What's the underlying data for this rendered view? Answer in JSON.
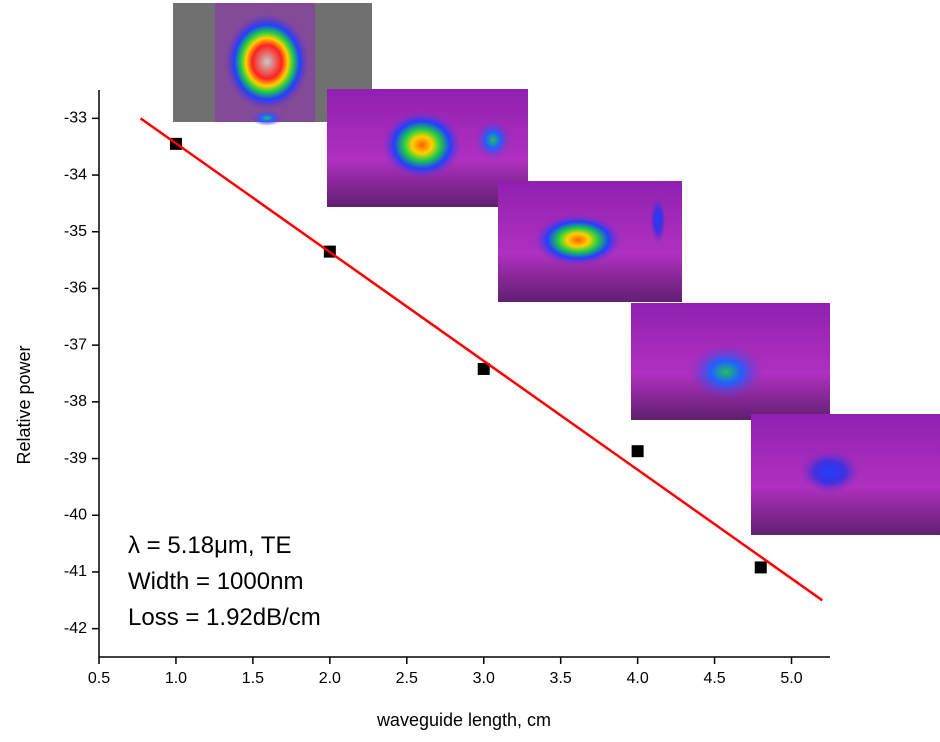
{
  "chart_data": {
    "type": "scatter",
    "xlabel": "waveguide length, cm",
    "ylabel": "Relative power",
    "xlim": [
      0.5,
      5.25
    ],
    "ylim": [
      -42.5,
      -32.5
    ],
    "xticks": [
      {
        "value": 0.5,
        "label": "0.5"
      },
      {
        "value": 1,
        "label": "1.0"
      },
      {
        "value": 1.5,
        "label": "1.5"
      },
      {
        "value": 2,
        "label": "2.0"
      },
      {
        "value": 2.5,
        "label": "2.5"
      },
      {
        "value": 3,
        "label": "3.0"
      },
      {
        "value": 3.5,
        "label": "3.5"
      },
      {
        "value": 4,
        "label": "4.0"
      },
      {
        "value": 4.5,
        "label": "4.5"
      },
      {
        "value": 5,
        "label": "5.0"
      }
    ],
    "yticks": [
      -33,
      -34,
      -35,
      -36,
      -37,
      -38,
      -39,
      -40,
      -41,
      -42
    ],
    "series": [
      {
        "type": "scatter",
        "color": "#000000",
        "x": [
          1.0,
          2.0,
          3.0,
          4.0,
          4.8
        ],
        "values": [
          -33.45,
          -35.35,
          -37.42,
          -38.87,
          -40.92
        ]
      },
      {
        "type": "line",
        "color": "#ff0000",
        "x": [
          0.77,
          5.2
        ],
        "values": [
          -33.0,
          -41.5
        ]
      }
    ],
    "annotations": [
      "λ = 5.18μm, TE",
      "Width = 1000nm",
      "Loss = 1.92dB/cm"
    ]
  }
}
